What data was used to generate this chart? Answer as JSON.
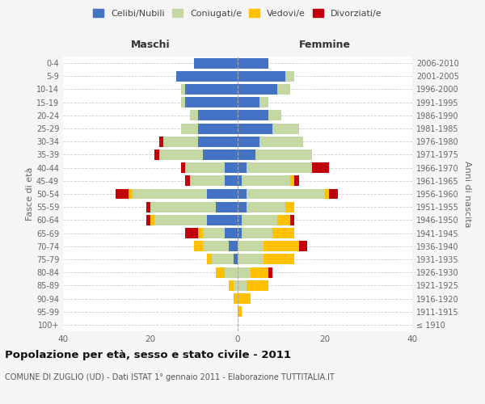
{
  "age_groups": [
    "100+",
    "95-99",
    "90-94",
    "85-89",
    "80-84",
    "75-79",
    "70-74",
    "65-69",
    "60-64",
    "55-59",
    "50-54",
    "45-49",
    "40-44",
    "35-39",
    "30-34",
    "25-29",
    "20-24",
    "15-19",
    "10-14",
    "5-9",
    "0-4"
  ],
  "birth_years": [
    "≤ 1910",
    "1911-1915",
    "1916-1920",
    "1921-1925",
    "1926-1930",
    "1931-1935",
    "1936-1940",
    "1941-1945",
    "1946-1950",
    "1951-1955",
    "1956-1960",
    "1961-1965",
    "1966-1970",
    "1971-1975",
    "1976-1980",
    "1981-1985",
    "1986-1990",
    "1991-1995",
    "1996-2000",
    "2001-2005",
    "2006-2010"
  ],
  "colors": {
    "celibi": "#4472c4",
    "coniugati": "#c5d8a4",
    "vedovi": "#ffc000",
    "divorziati": "#c0000b"
  },
  "maschi": {
    "celibi": [
      0,
      0,
      0,
      0,
      0,
      1,
      2,
      3,
      7,
      5,
      7,
      3,
      3,
      8,
      9,
      9,
      9,
      12,
      12,
      14,
      10
    ],
    "coniugati": [
      0,
      0,
      0,
      1,
      3,
      5,
      6,
      5,
      12,
      15,
      17,
      8,
      9,
      10,
      8,
      4,
      2,
      1,
      1,
      0,
      0
    ],
    "vedovi": [
      0,
      0,
      1,
      1,
      2,
      1,
      2,
      1,
      1,
      0,
      1,
      0,
      0,
      0,
      0,
      0,
      0,
      0,
      0,
      0,
      0
    ],
    "divorziati": [
      0,
      0,
      0,
      0,
      0,
      0,
      0,
      3,
      1,
      1,
      3,
      1,
      1,
      1,
      1,
      0,
      0,
      0,
      0,
      0,
      0
    ]
  },
  "femmine": {
    "celibi": [
      0,
      0,
      0,
      0,
      0,
      0,
      0,
      1,
      1,
      2,
      2,
      1,
      2,
      4,
      5,
      8,
      7,
      5,
      9,
      11,
      7
    ],
    "coniugati": [
      0,
      0,
      0,
      2,
      3,
      6,
      6,
      7,
      8,
      9,
      18,
      11,
      15,
      13,
      10,
      6,
      3,
      2,
      3,
      2,
      0
    ],
    "vedovi": [
      0,
      1,
      3,
      5,
      4,
      7,
      8,
      5,
      3,
      2,
      1,
      1,
      0,
      0,
      0,
      0,
      0,
      0,
      0,
      0,
      0
    ],
    "divorziati": [
      0,
      0,
      0,
      0,
      1,
      0,
      2,
      0,
      1,
      0,
      2,
      1,
      4,
      0,
      0,
      0,
      0,
      0,
      0,
      0,
      0
    ]
  },
  "xlim": 40,
  "title": "Popolazione per età, sesso e stato civile - 2011",
  "subtitle": "COMUNE DI ZUGLIO (UD) - Dati ISTAT 1° gennaio 2011 - Elaborazione TUTTITALIA.IT",
  "ylabel_left": "Fasce di età",
  "ylabel_right": "Anni di nascita",
  "xlabel_left": "Maschi",
  "xlabel_right": "Femmine",
  "bg_color": "#f5f5f5",
  "plot_bg": "#ffffff"
}
